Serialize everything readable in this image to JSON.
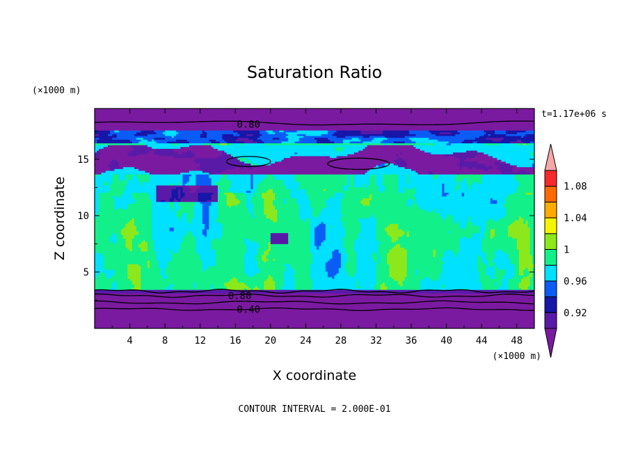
{
  "chart_data": {
    "type": "heatmap",
    "title": "Saturation Ratio",
    "xlabel": "X coordinate",
    "ylabel": "Z coordinate",
    "x_unit": "(×1000 m)",
    "y_unit": "(×1000 m)",
    "time_label": "t=1.17e+06 s",
    "contour_interval_label": "CONTOUR INTERVAL = 2.000E-01",
    "xlim": [
      0,
      50
    ],
    "ylim": [
      0,
      19.5
    ],
    "x_ticks": [
      4,
      8,
      12,
      16,
      20,
      24,
      28,
      32,
      36,
      40,
      44,
      48
    ],
    "y_ticks": [
      5,
      10,
      15
    ],
    "contour_labels": [
      {
        "text": "0.80",
        "x": 17.5,
        "z": 18.1
      },
      {
        "text": "0.80",
        "x": 16.5,
        "z": 2.9
      },
      {
        "text": "0.40",
        "x": 17.5,
        "z": 1.7
      }
    ],
    "colorbar": {
      "levels": [
        0.9,
        0.92,
        0.94,
        0.96,
        0.98,
        1.0,
        1.02,
        1.04,
        1.06,
        1.08,
        1.1
      ],
      "tick_labels": [
        "0.92",
        "0.96",
        "1",
        "1.04",
        "1.08"
      ],
      "tick_values": [
        0.92,
        0.96,
        1.0,
        1.04,
        1.08
      ],
      "colors": [
        "#5a1aa8",
        "#1616a8",
        "#0a5cf5",
        "#00e0ff",
        "#12f08a",
        "#8ce81a",
        "#f5f500",
        "#ffaa00",
        "#ff6a00",
        "#f52a2a"
      ],
      "under_color": "#7a1aa0",
      "over_color": "#f5a8a8"
    },
    "bands": [
      {
        "value": 0.85,
        "z_min": 0,
        "z_max": 3.1
      },
      {
        "value": 0.97,
        "z_min": 3.3,
        "z_max": 9
      },
      {
        "value": 1.01,
        "z_min": 4,
        "z_max": 12
      },
      {
        "value": 0.97,
        "z_min": 12,
        "z_max": 16.5
      },
      {
        "value": 0.9,
        "z_min": 13.8,
        "z_max": 15.6
      },
      {
        "value": 0.94,
        "z_min": 16.3,
        "z_max": 17.3
      },
      {
        "value": 0.85,
        "z_min": 17.5,
        "z_max": 19.5
      }
    ]
  }
}
